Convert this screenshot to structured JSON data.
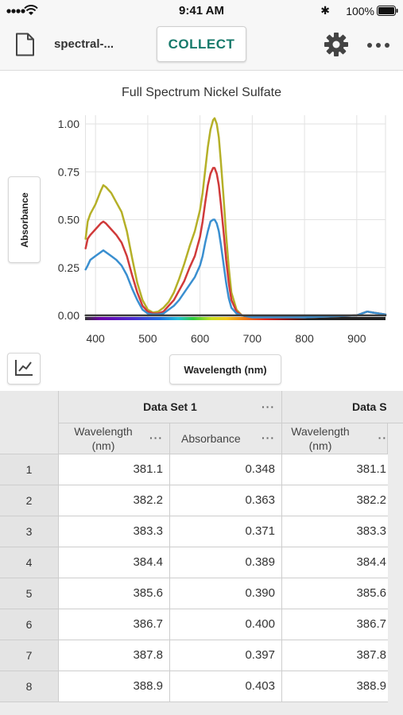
{
  "status": {
    "time": "9:41 AM",
    "battery": "100%"
  },
  "toolbar": {
    "file_name": "spectral-...",
    "collect_label": "COLLECT"
  },
  "graph": {
    "ylabel_button": "Absorbance",
    "xlabel_button": "Wavelength (nm)"
  },
  "chart_data": {
    "type": "line",
    "title": "Full Spectrum Nickel Sulfate",
    "xlabel": "Wavelength (nm)",
    "ylabel": "Absorbance",
    "xlim": [
      380,
      955
    ],
    "ylim": [
      -0.02,
      1.05
    ],
    "x_ticks": [
      400,
      500,
      600,
      700,
      800,
      900
    ],
    "y_ticks": [
      0.0,
      0.25,
      0.5,
      0.75,
      1.0
    ],
    "y_tick_labels": [
      "0.00",
      "0.25",
      "0.50",
      "0.75",
      "1.00"
    ],
    "grid": true,
    "legend": "none",
    "series": [
      {
        "color": "#b5b028",
        "x": [
          381,
          385,
          390,
          400,
          410,
          415,
          420,
          430,
          440,
          450,
          460,
          470,
          480,
          490,
          500,
          510,
          520,
          530,
          540,
          550,
          560,
          570,
          580,
          590,
          600,
          605,
          610,
          615,
          620,
          625,
          628,
          632,
          636,
          640,
          645,
          650,
          655,
          660,
          670,
          680,
          690,
          700,
          750,
          800,
          850,
          900,
          910,
          920,
          930,
          955
        ],
        "y": [
          0.4,
          0.49,
          0.53,
          0.58,
          0.65,
          0.68,
          0.67,
          0.64,
          0.59,
          0.54,
          0.44,
          0.3,
          0.17,
          0.08,
          0.03,
          0.015,
          0.02,
          0.04,
          0.07,
          0.12,
          0.19,
          0.27,
          0.36,
          0.44,
          0.55,
          0.64,
          0.76,
          0.88,
          0.97,
          1.02,
          1.03,
          1.0,
          0.93,
          0.8,
          0.62,
          0.42,
          0.25,
          0.12,
          0.03,
          0.0,
          -0.005,
          -0.01,
          -0.01,
          -0.01,
          -0.005,
          0.0,
          0.01,
          0.02,
          0.015,
          0.005
        ]
      },
      {
        "color": "#d03a3a",
        "x": [
          381,
          385,
          390,
          400,
          410,
          415,
          420,
          430,
          440,
          450,
          460,
          470,
          480,
          490,
          500,
          510,
          520,
          530,
          540,
          550,
          560,
          570,
          580,
          590,
          600,
          605,
          610,
          615,
          620,
          625,
          628,
          632,
          636,
          640,
          645,
          650,
          655,
          660,
          670,
          680,
          690,
          700,
          750,
          800,
          850,
          900,
          910,
          920,
          930,
          955
        ],
        "y": [
          0.35,
          0.4,
          0.42,
          0.45,
          0.48,
          0.49,
          0.48,
          0.45,
          0.42,
          0.38,
          0.31,
          0.21,
          0.12,
          0.05,
          0.02,
          0.01,
          0.01,
          0.02,
          0.05,
          0.08,
          0.13,
          0.18,
          0.25,
          0.31,
          0.41,
          0.49,
          0.59,
          0.68,
          0.74,
          0.77,
          0.77,
          0.74,
          0.68,
          0.58,
          0.44,
          0.29,
          0.17,
          0.08,
          0.02,
          0.0,
          -0.005,
          -0.01,
          -0.01,
          -0.01,
          -0.005,
          0.0,
          0.01,
          0.02,
          0.015,
          0.005
        ]
      },
      {
        "color": "#3a8fd0",
        "x": [
          381,
          385,
          390,
          400,
          410,
          415,
          420,
          430,
          440,
          450,
          460,
          470,
          480,
          490,
          500,
          510,
          520,
          530,
          540,
          550,
          560,
          570,
          580,
          590,
          600,
          605,
          610,
          615,
          620,
          625,
          628,
          632,
          636,
          640,
          645,
          650,
          655,
          660,
          670,
          680,
          690,
          700,
          750,
          800,
          850,
          900,
          910,
          920,
          930,
          955
        ],
        "y": [
          0.24,
          0.26,
          0.29,
          0.31,
          0.33,
          0.34,
          0.33,
          0.31,
          0.29,
          0.26,
          0.21,
          0.14,
          0.08,
          0.03,
          0.01,
          0.005,
          0.005,
          0.01,
          0.03,
          0.05,
          0.08,
          0.12,
          0.16,
          0.2,
          0.26,
          0.31,
          0.38,
          0.44,
          0.49,
          0.5,
          0.5,
          0.48,
          0.44,
          0.37,
          0.27,
          0.17,
          0.09,
          0.04,
          0.01,
          0.0,
          -0.005,
          -0.01,
          -0.01,
          -0.01,
          -0.005,
          0.0,
          0.01,
          0.02,
          0.015,
          0.005
        ]
      },
      {
        "color": "#3a3a3a",
        "x": [
          381,
          955
        ],
        "y": [
          0.0,
          0.0
        ]
      }
    ]
  },
  "table": {
    "datasets": [
      {
        "name": "Data Set 1",
        "columns": [
          "Wavelength (nm)",
          "Absorbance"
        ]
      },
      {
        "name": "Data S",
        "columns": [
          "Wavelength (nm)"
        ]
      }
    ],
    "rows": [
      {
        "index": "1",
        "values": [
          "381.1",
          "0.348",
          "381.1"
        ]
      },
      {
        "index": "2",
        "values": [
          "382.2",
          "0.363",
          "382.2"
        ]
      },
      {
        "index": "3",
        "values": [
          "383.3",
          "0.371",
          "383.3"
        ]
      },
      {
        "index": "4",
        "values": [
          "384.4",
          "0.389",
          "384.4"
        ]
      },
      {
        "index": "5",
        "values": [
          "385.6",
          "0.390",
          "385.6"
        ]
      },
      {
        "index": "6",
        "values": [
          "386.7",
          "0.400",
          "386.7"
        ]
      },
      {
        "index": "7",
        "values": [
          "387.8",
          "0.397",
          "387.8"
        ]
      },
      {
        "index": "8",
        "values": [
          "388.9",
          "0.403",
          "388.9"
        ]
      }
    ]
  }
}
